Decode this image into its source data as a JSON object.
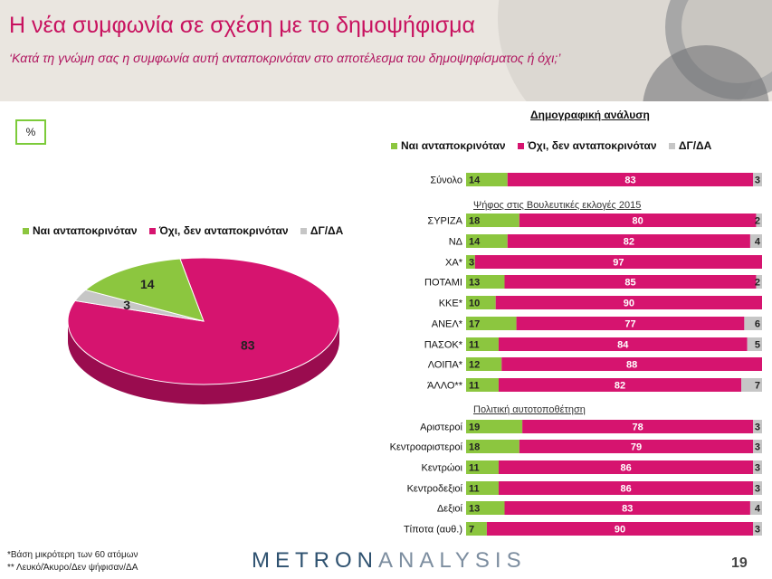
{
  "header": {
    "title": "Η νέα συμφωνία σε σχέση με το δημοψήφισμα",
    "subtitle": "‘Κατά τη γνώμη σας η συμφωνία αυτή ανταποκρινόταν στο αποτέλεσμα του δημοψηφίσματος ή όχι;’"
  },
  "unit_label": "%",
  "demographic_heading": "Δημογραφική ανάλυση",
  "section_labels": {
    "vote": "Ψήφος στις Βουλευτικές εκλογές 2015",
    "ideology": "Πολιτική αυτοτοποθέτηση"
  },
  "colors": {
    "yes": "#8cc63f",
    "no": "#d6146f",
    "dk": "#c6c6c6"
  },
  "chart_data": [
    {
      "type": "pie",
      "series": [
        {
          "name": "Ναι ανταποκρινόταν",
          "values": [
            14
          ]
        },
        {
          "name": "Όχι, δεν ανταποκρινόταν",
          "values": [
            83
          ]
        },
        {
          "name": "ΔΓ/ΔΑ",
          "values": [
            3
          ]
        }
      ],
      "legend": [
        "Ναι ανταποκρινόταν",
        "Όχι, δεν ανταποκρινόταν",
        "ΔΓ/ΔΑ"
      ],
      "legend_position": "top"
    },
    {
      "type": "bar",
      "orientation": "horizontal",
      "stacked": true,
      "legend": [
        "Ναι ανταποκρινόταν",
        "Όχι, δεν ανταποκρινόταν",
        "ΔΓ/ΔΑ"
      ],
      "legend_position": "top",
      "categories": [
        "Σύνολο",
        "ΣΥΡΙΖΑ",
        "ΝΔ",
        "ΧΑ*",
        "ΠΟΤΑΜΙ",
        "ΚΚΕ*",
        "ΑΝΕΛ*",
        "ΠΑΣΟΚ*",
        "ΛΟΙΠΑ*",
        "ΆΛΛΟ**",
        "Αριστεροί",
        "Κεντροαριστεροί",
        "Κεντρώοι",
        "Κεντροδεξιοί",
        "Δεξιοί",
        "Τίποτα (αυθ.)"
      ],
      "series": [
        {
          "name": "Ναι ανταποκρινόταν",
          "values": [
            14,
            18,
            14,
            3,
            13,
            10,
            17,
            11,
            12,
            11,
            19,
            18,
            11,
            11,
            13,
            7
          ]
        },
        {
          "name": "Όχι, δεν ανταποκρινόταν",
          "values": [
            83,
            80,
            82,
            97,
            85,
            90,
            77,
            84,
            88,
            82,
            78,
            79,
            86,
            86,
            83,
            90
          ]
        },
        {
          "name": "ΔΓ/ΔΑ",
          "values": [
            3,
            2,
            4,
            null,
            2,
            null,
            6,
            5,
            null,
            7,
            3,
            3,
            3,
            3,
            4,
            3
          ]
        }
      ]
    }
  ],
  "footnotes": [
    "*Βάση μικρότερη των 60 ατόμων",
    "** Λευκό/Άκυρο/Δεν ψήφισαν/ΔΑ"
  ],
  "logo": {
    "part1": "METRON",
    "part2": "ANALYSIS"
  },
  "page_number": "19"
}
